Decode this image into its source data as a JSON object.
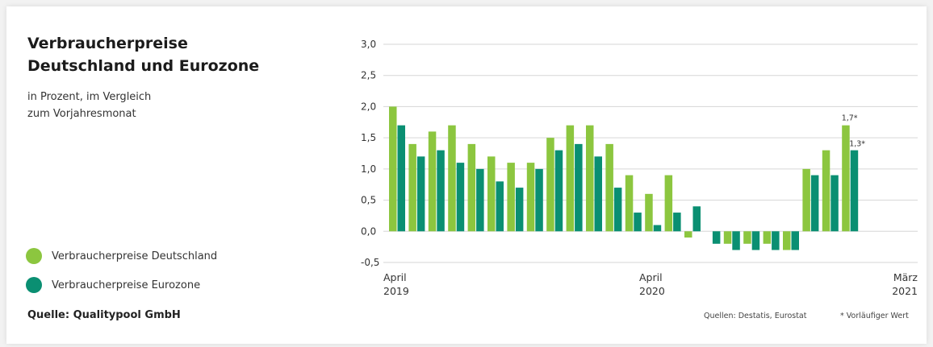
{
  "title_line1": "Verbraucherpreise",
  "title_line2": "Deutschland und Eurozone",
  "subtitle_line1": "in Prozent, im Vergleich",
  "subtitle_line2": "zum Vorjahresmonat",
  "source": "Quelle: Qualitypool GmbH",
  "footer_sources": "Quellen: Destatis, Eurostat",
  "footer_note": "* Vorläufiger Wert",
  "colors": {
    "germany": "#8cc63f",
    "eurozone": "#0a8f72",
    "grid": "#d6d6d6",
    "axis_text": "#333333"
  },
  "chart_data": {
    "type": "bar",
    "x": [
      "2019-04",
      "2019-05",
      "2019-06",
      "2019-07",
      "2019-08",
      "2019-09",
      "2019-10",
      "2019-11",
      "2019-12",
      "2020-01",
      "2020-02",
      "2020-03",
      "2020-04",
      "2020-05",
      "2020-06",
      "2020-07",
      "2020-08",
      "2020-09",
      "2020-10",
      "2020-11",
      "2020-12",
      "2021-01",
      "2021-02",
      "2021-03"
    ],
    "series": [
      {
        "name": "Verbraucherpreise Deutschland",
        "values": [
          2.0,
          1.4,
          1.6,
          1.7,
          1.4,
          1.2,
          1.1,
          1.1,
          1.5,
          1.7,
          1.7,
          1.4,
          0.9,
          0.6,
          0.9,
          -0.1,
          0.0,
          -0.2,
          -0.2,
          -0.2,
          -0.3,
          1.0,
          1.3,
          1.7
        ]
      },
      {
        "name": "Verbraucherpreise Eurozone",
        "values": [
          1.7,
          1.2,
          1.3,
          1.1,
          1.0,
          0.8,
          0.7,
          1.0,
          1.3,
          1.4,
          1.2,
          0.7,
          0.3,
          0.1,
          0.3,
          0.4,
          -0.2,
          -0.3,
          -0.3,
          -0.3,
          -0.3,
          0.9,
          0.9,
          1.3
        ]
      }
    ],
    "y_ticks": [
      "3,0",
      "2,5",
      "2,0",
      "1,5",
      "1,0",
      "0,5",
      "0,0",
      "-0,5"
    ],
    "ylim": [
      -0.5,
      3.0
    ],
    "x_tick_labels": [
      {
        "month": "April",
        "year": "2019"
      },
      {
        "month": "April",
        "year": "2020"
      },
      {
        "month": "März",
        "year": "2021"
      }
    ],
    "annotations": [
      {
        "text": "1,7*"
      },
      {
        "text": "1,3*"
      }
    ],
    "grid": true,
    "legend_position": "left"
  }
}
